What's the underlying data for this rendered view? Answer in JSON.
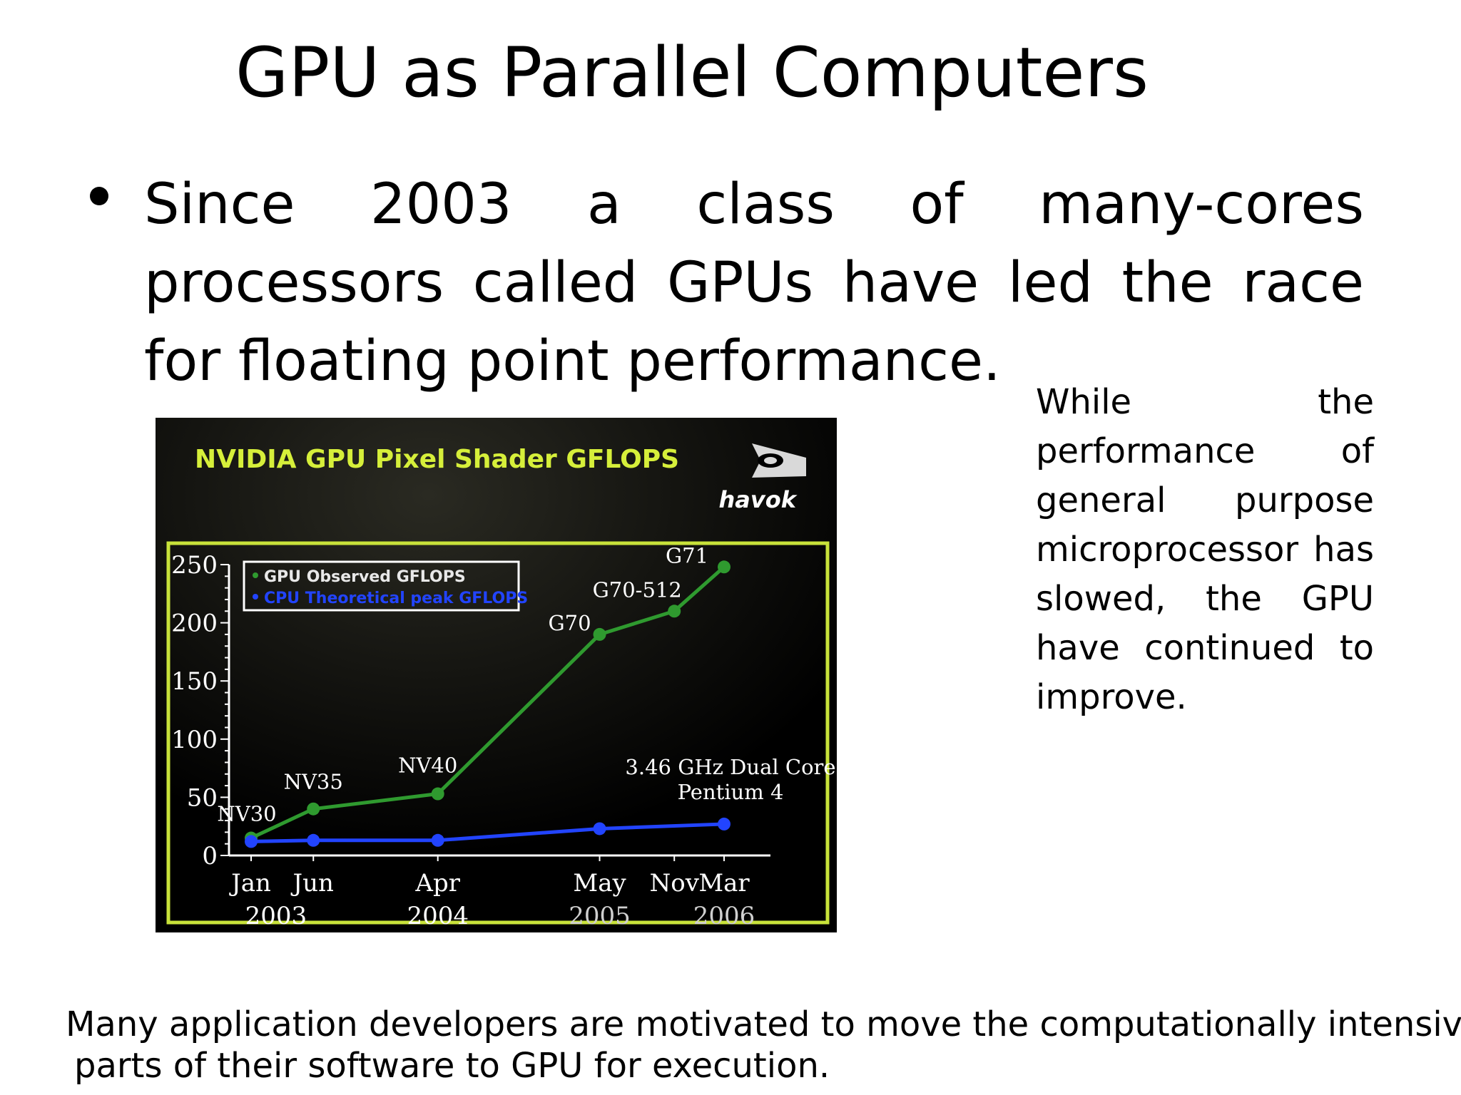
{
  "slide": {
    "title": "GPU as Parallel Computers",
    "bullet": "Since 2003 a class of many-cores processors called GPUs have led the race for floating point performance.",
    "side_note": "While the performance of general purpose microprocessor has slowed, the GPU have continued to improve.",
    "footer_line1": "Many application developers are motivated to move the computationally intensive",
    "footer_line2": "parts of their software to GPU for execution."
  },
  "chart_data": {
    "type": "line",
    "title": "NVIDIA GPU Pixel Shader GFLOPS",
    "brand_mark": "havok",
    "xlabel": "",
    "ylabel": "",
    "ylim": [
      0,
      250
    ],
    "y_ticks": [
      "0",
      "50",
      "100",
      "150",
      "200",
      "250"
    ],
    "x_ticks": [
      {
        "date": "2003-01",
        "label": "Jan"
      },
      {
        "date": "2003-06",
        "label": "Jun"
      },
      {
        "date": "2004-04",
        "label": "Apr"
      },
      {
        "date": "2005-05",
        "label": "May"
      },
      {
        "date": "2005-11",
        "label": "Nov"
      },
      {
        "date": "2006-03",
        "label": "Mar"
      }
    ],
    "year_labels": [
      {
        "date": "2003-03",
        "label": "2003"
      },
      {
        "date": "2004-04",
        "label": "2004"
      },
      {
        "date": "2005-05",
        "label": "2005"
      },
      {
        "date": "2006-03",
        "label": "2006"
      }
    ],
    "legend": [
      "GPU Observed GFLOPS",
      "CPU Theoretical peak GFLOPS"
    ],
    "legend_position": "top-left",
    "grid": false,
    "series": [
      {
        "name": "GPU Observed GFLOPS",
        "color": "#2f9a2f",
        "points": [
          {
            "x": "2003-01",
            "y": 15,
            "label": "NV30"
          },
          {
            "x": "2003-06",
            "y": 40,
            "label": "NV35"
          },
          {
            "x": "2004-04",
            "y": 53,
            "label": "NV40"
          },
          {
            "x": "2005-05",
            "y": 190,
            "label": "G70"
          },
          {
            "x": "2005-11",
            "y": 210,
            "label": "G70-512"
          },
          {
            "x": "2006-03",
            "y": 248,
            "label": "G71"
          }
        ]
      },
      {
        "name": "CPU Theoretical peak GFLOPS",
        "color": "#2244ff",
        "points": [
          {
            "x": "2003-01",
            "y": 12
          },
          {
            "x": "2003-06",
            "y": 13
          },
          {
            "x": "2004-04",
            "y": 13
          },
          {
            "x": "2005-05",
            "y": 23
          },
          {
            "x": "2006-03",
            "y": 27
          }
        ]
      }
    ],
    "annotations": [
      "3.46 GHz Dual Core",
      "Pentium 4"
    ],
    "colors": {
      "title": "#d6ef3a",
      "frame": "#c8e23a",
      "background": "#000000",
      "text": "#ffffff"
    }
  }
}
